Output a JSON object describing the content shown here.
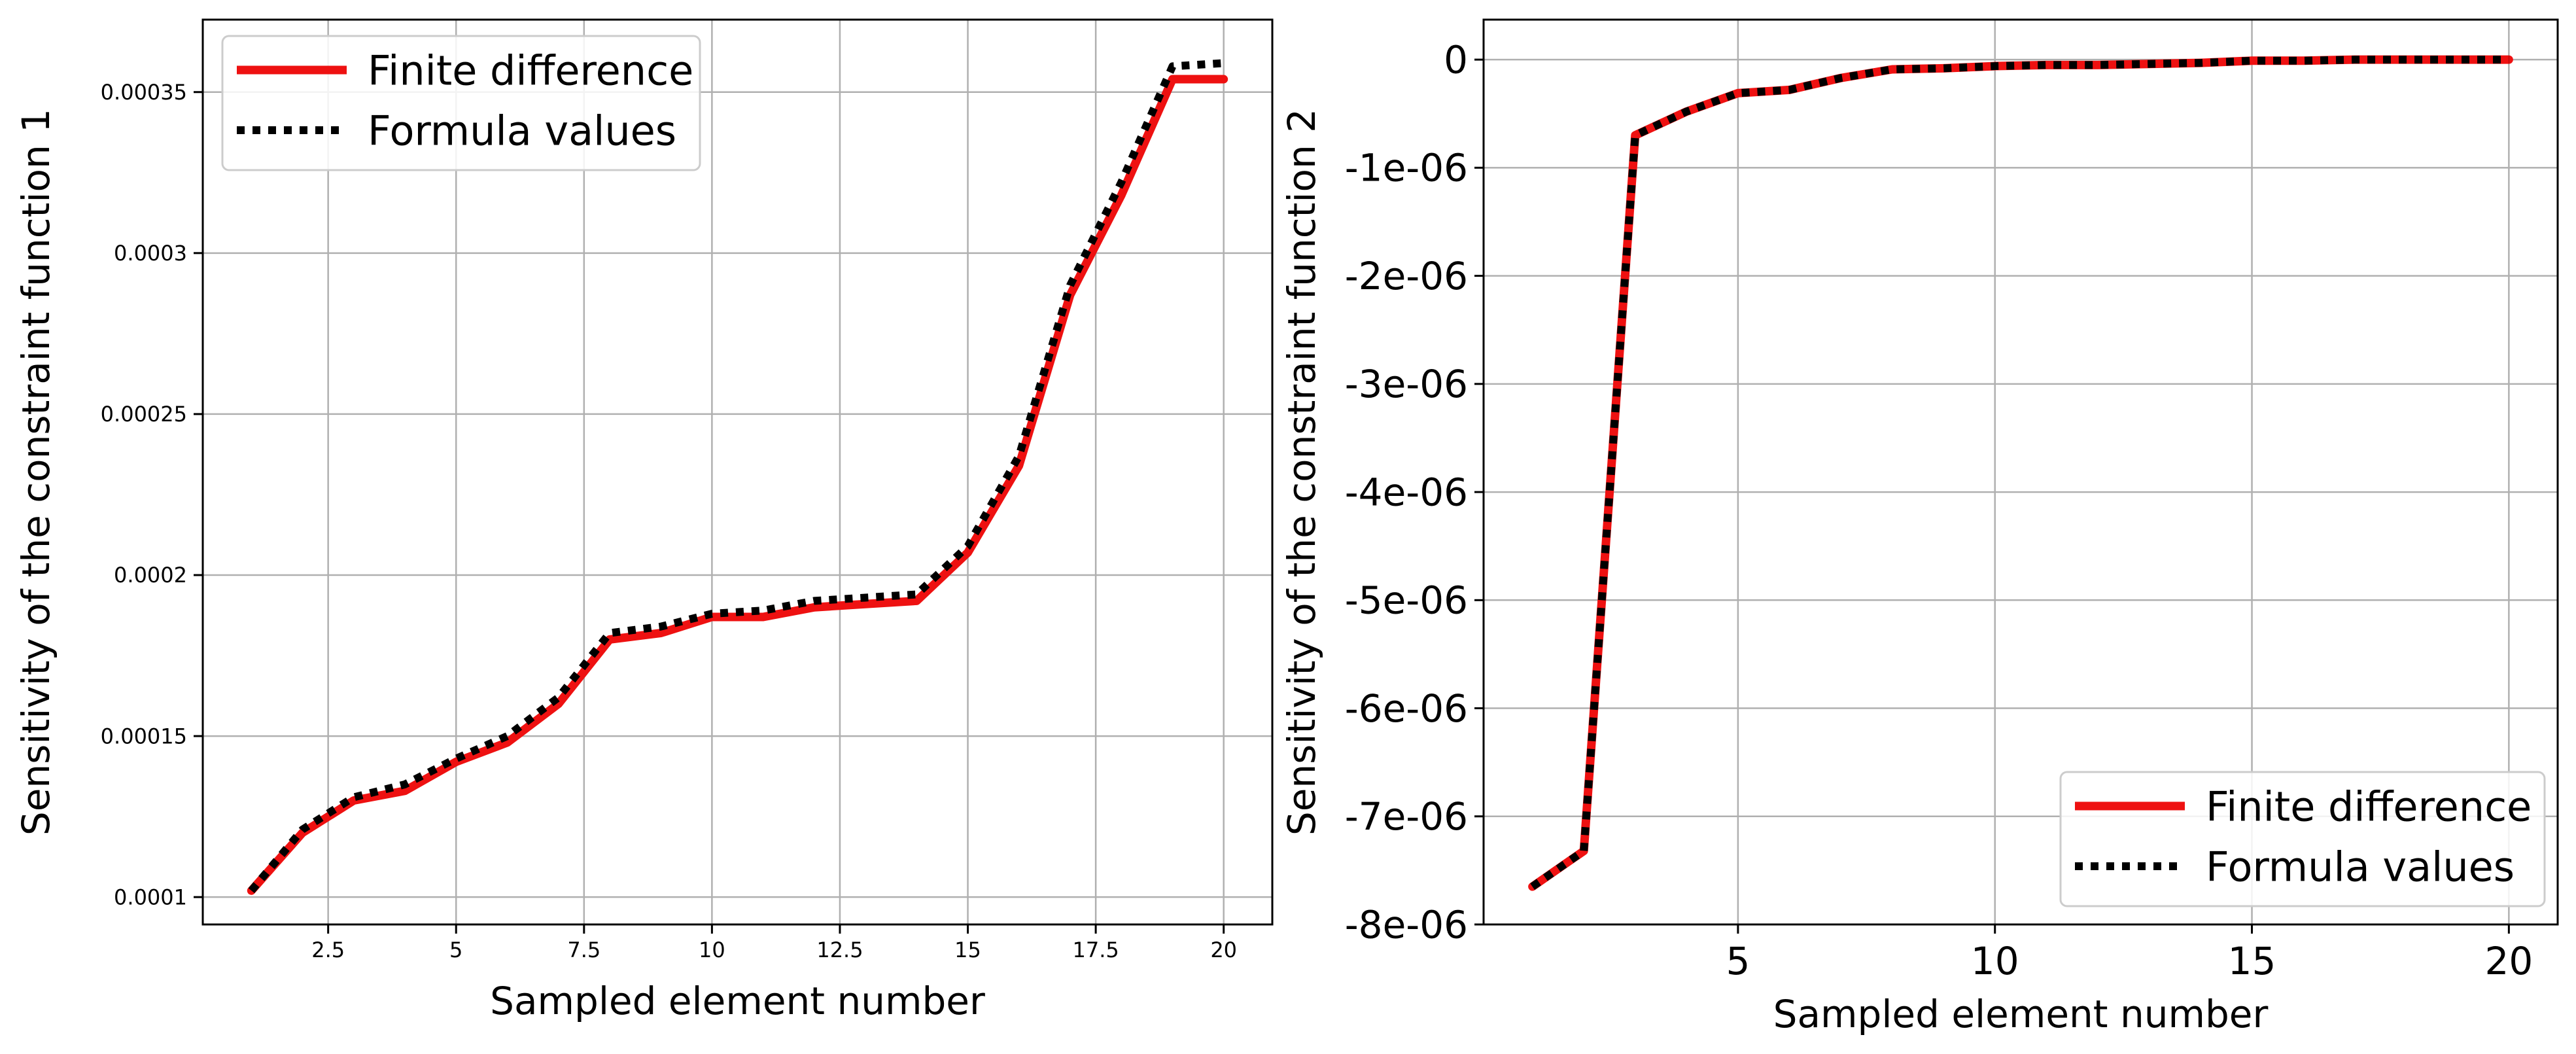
{
  "colors": {
    "finite_difference": "#ee1111",
    "formula_values": "#000000",
    "grid": "#b0b0b0",
    "axes": "#000000",
    "background": "#ffffff"
  },
  "chart_data": [
    {
      "type": "line",
      "title": "",
      "xlabel": "Sampled element number",
      "ylabel": "Sensitivity of the constraint function 1",
      "xlim": [
        0.05,
        20.95
      ],
      "ylim": [
        9.15e-05,
        0.0003725
      ],
      "x_ticks": [
        2.5,
        5,
        7.5,
        10,
        12.5,
        15,
        17.5,
        20
      ],
      "x_tick_labels": [
        "2.5",
        "5",
        "7.5",
        "10",
        "12.5",
        "15",
        "17.5",
        "20"
      ],
      "y_ticks": [
        0.0001,
        0.00015,
        0.0002,
        0.00025,
        0.0003,
        0.00035
      ],
      "y_tick_labels": [
        "0.0001",
        "0.00015",
        "0.0002",
        "0.00025",
        "0.0003",
        "0.00035"
      ],
      "grid": true,
      "legend_position": "top-left",
      "x": [
        1,
        2,
        3,
        4,
        5,
        6,
        7,
        8,
        9,
        10,
        11,
        12,
        13,
        14,
        15,
        16,
        17,
        18,
        19,
        20
      ],
      "series": [
        {
          "name": "Finite difference",
          "style": "solid",
          "values": [
            0.000102,
            0.00012,
            0.00013,
            0.000133,
            0.000142,
            0.000148,
            0.00016,
            0.00018,
            0.000182,
            0.000187,
            0.000187,
            0.00019,
            0.000191,
            0.000192,
            0.000207,
            0.000234,
            0.000287,
            0.000318,
            0.000354,
            0.000354
          ]
        },
        {
          "name": "Formula values",
          "style": "dotted",
          "values": [
            0.000102,
            0.000121,
            0.000131,
            0.000135,
            0.000143,
            0.00015,
            0.000162,
            0.000182,
            0.000184,
            0.000188,
            0.000189,
            0.000192,
            0.000193,
            0.000194,
            0.000209,
            0.000237,
            0.00029,
            0.000322,
            0.000358,
            0.000359
          ]
        }
      ]
    },
    {
      "type": "line",
      "title": "",
      "xlabel": "Sampled element number",
      "ylabel": "Sensitivity of the constraint function 2",
      "xlim": [
        0.05,
        20.95
      ],
      "ylim": [
        -8e-06,
        3.7e-07
      ],
      "x_ticks": [
        5,
        10,
        15,
        20
      ],
      "x_tick_labels": [
        "5",
        "10",
        "15",
        "20"
      ],
      "y_ticks": [
        0,
        -1e-06,
        -2e-06,
        -3e-06,
        -4e-06,
        -5e-06,
        -6e-06,
        -7e-06,
        -8e-06
      ],
      "y_tick_labels": [
        "0",
        "-1e-06",
        "-2e-06",
        "-3e-06",
        "-4e-06",
        "-5e-06",
        "-6e-06",
        "-7e-06",
        "-8e-06"
      ],
      "grid": true,
      "legend_position": "bottom-right",
      "x": [
        1,
        2,
        3,
        4,
        5,
        6,
        7,
        8,
        9,
        10,
        11,
        12,
        13,
        14,
        15,
        16,
        17,
        18,
        19,
        20
      ],
      "series": [
        {
          "name": "Finite difference",
          "style": "solid",
          "values": [
            -7.65e-06,
            -7.32e-06,
            -7e-07,
            -4.8e-07,
            -3.1e-07,
            -2.8e-07,
            -1.7e-07,
            -9e-08,
            -8e-08,
            -6e-08,
            -5e-08,
            -5e-08,
            -4e-08,
            -3e-08,
            -1e-08,
            -1e-08,
            0,
            0,
            0,
            0
          ]
        },
        {
          "name": "Formula values",
          "style": "dotted",
          "values": [
            -7.65e-06,
            -7.32e-06,
            -7e-07,
            -4.8e-07,
            -3.1e-07,
            -2.8e-07,
            -1.7e-07,
            -9e-08,
            -8e-08,
            -6e-08,
            -5e-08,
            -5e-08,
            -4e-08,
            -3e-08,
            -1e-08,
            -1e-08,
            0,
            0,
            0,
            0
          ]
        }
      ]
    }
  ]
}
